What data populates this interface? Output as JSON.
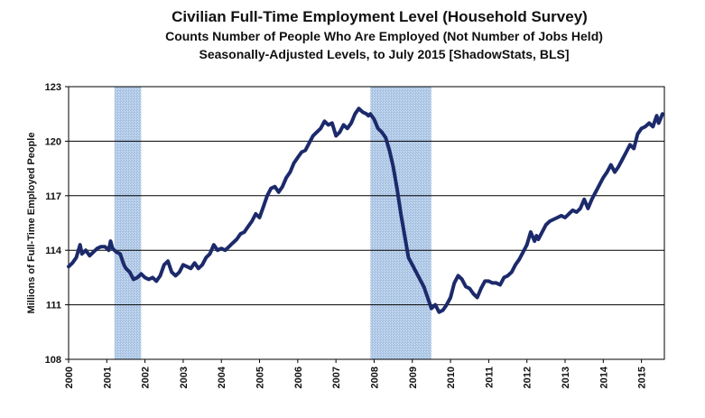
{
  "chart_data": {
    "type": "line",
    "title": "Civilian Full-Time Employment  Level (Household Survey)",
    "subtitle_1": "Counts Number of People Who Are Employed (Not Number of Jobs Held)",
    "subtitle_2": "Seasonally-Adjusted Levels, to July 2015 [ShadowStats, BLS]",
    "xlabel": "",
    "ylabel": "Millions  of  Full-Time  Employed  People",
    "xlim": [
      2000,
      2015.6
    ],
    "ylim": [
      108,
      123
    ],
    "yticks": [
      108,
      111,
      114,
      117,
      120,
      123
    ],
    "xticks": [
      "2000",
      "2001",
      "2002",
      "2003",
      "2004",
      "2005",
      "2006",
      "2007",
      "2008",
      "2009",
      "2010",
      "2011",
      "2012",
      "2013",
      "2014",
      "2015"
    ],
    "recessions": [
      {
        "start": 2001.2,
        "end": 2001.9
      },
      {
        "start": 2007.9,
        "end": 2009.5
      }
    ],
    "series": [
      {
        "name": "Full-Time Employment Level",
        "color": "#1c2a6b",
        "x": [
          2000.0,
          2000.1,
          2000.2,
          2000.3,
          2000.35,
          2000.45,
          2000.55,
          2000.65,
          2000.75,
          2000.85,
          2000.95,
          2001.05,
          2001.1,
          2001.15,
          2001.25,
          2001.35,
          2001.45,
          2001.5,
          2001.6,
          2001.7,
          2001.8,
          2001.9,
          2002.0,
          2002.1,
          2002.2,
          2002.3,
          2002.4,
          2002.5,
          2002.6,
          2002.7,
          2002.8,
          2002.9,
          2003.0,
          2003.1,
          2003.2,
          2003.3,
          2003.4,
          2003.5,
          2003.6,
          2003.7,
          2003.8,
          2003.9,
          2004.0,
          2004.1,
          2004.2,
          2004.3,
          2004.4,
          2004.5,
          2004.6,
          2004.7,
          2004.8,
          2004.9,
          2005.0,
          2005.1,
          2005.2,
          2005.3,
          2005.4,
          2005.5,
          2005.6,
          2005.7,
          2005.8,
          2005.9,
          2006.0,
          2006.1,
          2006.2,
          2006.3,
          2006.4,
          2006.5,
          2006.6,
          2006.7,
          2006.8,
          2006.9,
          2007.0,
          2007.1,
          2007.2,
          2007.3,
          2007.4,
          2007.5,
          2007.6,
          2007.7,
          2007.8,
          2007.85,
          2007.9,
          2008.0,
          2008.1,
          2008.2,
          2008.3,
          2008.4,
          2008.5,
          2008.6,
          2008.7,
          2008.8,
          2008.9,
          2009.0,
          2009.1,
          2009.2,
          2009.3,
          2009.4,
          2009.5,
          2009.6,
          2009.7,
          2009.8,
          2009.9,
          2010.0,
          2010.1,
          2010.2,
          2010.3,
          2010.4,
          2010.5,
          2010.6,
          2010.7,
          2010.8,
          2010.9,
          2011.0,
          2011.1,
          2011.2,
          2011.3,
          2011.4,
          2011.5,
          2011.6,
          2011.7,
          2011.8,
          2011.9,
          2012.0,
          2012.1,
          2012.2,
          2012.25,
          2012.3,
          2012.4,
          2012.5,
          2012.6,
          2012.7,
          2012.8,
          2012.9,
          2013.0,
          2013.1,
          2013.2,
          2013.3,
          2013.4,
          2013.5,
          2013.6,
          2013.7,
          2013.8,
          2013.9,
          2014.0,
          2014.1,
          2014.2,
          2014.3,
          2014.4,
          2014.5,
          2014.6,
          2014.7,
          2014.8,
          2014.9,
          2015.0,
          2015.1,
          2015.2,
          2015.3,
          2015.4,
          2015.45,
          2015.55
        ],
        "y": [
          113.1,
          113.3,
          113.6,
          114.3,
          113.8,
          114.0,
          113.7,
          113.9,
          114.1,
          114.2,
          114.2,
          114.0,
          114.5,
          114.1,
          113.9,
          113.8,
          113.2,
          113.0,
          112.8,
          112.4,
          112.5,
          112.7,
          112.5,
          112.4,
          112.5,
          112.3,
          112.6,
          113.2,
          113.4,
          112.8,
          112.6,
          112.8,
          113.2,
          113.1,
          113.0,
          113.3,
          113.0,
          113.2,
          113.6,
          113.8,
          114.3,
          114.0,
          114.1,
          114.0,
          114.2,
          114.4,
          114.6,
          114.9,
          115.0,
          115.3,
          115.6,
          116.0,
          115.8,
          116.4,
          117.0,
          117.4,
          117.5,
          117.2,
          117.5,
          118.0,
          118.3,
          118.8,
          119.1,
          119.4,
          119.5,
          119.9,
          120.3,
          120.5,
          120.7,
          121.1,
          120.9,
          121.0,
          120.3,
          120.5,
          120.9,
          120.7,
          121.0,
          121.5,
          121.8,
          121.6,
          121.5,
          121.4,
          121.5,
          121.2,
          120.7,
          120.5,
          120.2,
          119.5,
          118.6,
          117.4,
          116.0,
          114.8,
          113.6,
          113.2,
          112.8,
          112.4,
          112.0,
          111.4,
          110.8,
          111.0,
          110.6,
          110.7,
          111.0,
          111.4,
          112.2,
          112.6,
          112.4,
          112.0,
          111.9,
          111.6,
          111.4,
          111.9,
          112.3,
          112.3,
          112.2,
          112.2,
          112.1,
          112.5,
          112.6,
          112.8,
          113.2,
          113.5,
          113.9,
          114.3,
          115.0,
          114.5,
          114.8,
          114.6,
          115.0,
          115.4,
          115.6,
          115.7,
          115.8,
          115.9,
          115.8,
          116.0,
          116.2,
          116.1,
          116.3,
          116.8,
          116.3,
          116.8,
          117.2,
          117.6,
          118.0,
          118.3,
          118.7,
          118.3,
          118.6,
          119.0,
          119.4,
          119.8,
          119.6,
          120.4,
          120.7,
          120.8,
          121.0,
          120.8,
          121.4,
          121.0,
          121.5
        ]
      }
    ]
  }
}
